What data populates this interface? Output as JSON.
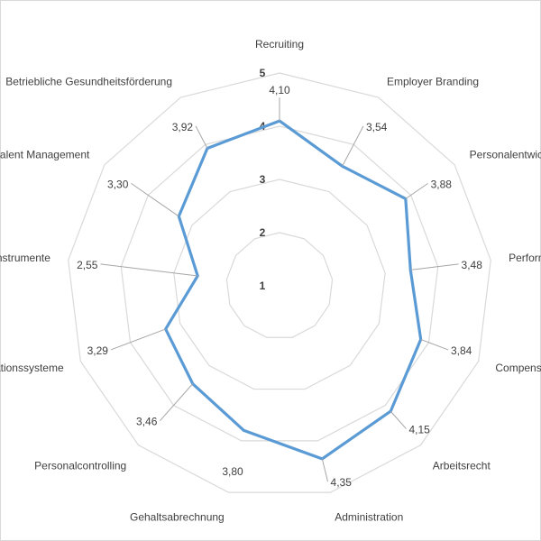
{
  "chart_data": {
    "type": "radar",
    "title": "",
    "categories": [
      "Recruiting",
      "Employer Branding",
      "Personalentwicklung",
      "Performance",
      "Compensation",
      "Arbeitsrecht",
      "Administration",
      "Gehaltsabrechnung",
      "Personalcontrolling",
      "Kommunikationssysteme",
      "Instrumente",
      "Talent Management",
      "Betriebliche Gesundheitsförderung"
    ],
    "category_labels_visible": [
      "Recruiting",
      "Employer Branding",
      "Personalentwick",
      "Perform",
      "Compensat",
      "Arbeitsrecht",
      "Administration",
      "Gehaltsabrechnung",
      "Personalcontrolling",
      "ationssysteme",
      "nstrumente",
      "alent Management",
      "Betriebliche Gesundheitsförderung"
    ],
    "values": [
      4.1,
      3.54,
      3.88,
      3.48,
      3.84,
      4.15,
      4.35,
      3.8,
      3.46,
      3.29,
      2.55,
      3.3,
      3.92
    ],
    "value_labels": [
      "4,10",
      "3,54",
      "3,88",
      "3,48",
      "3,84",
      "4,15",
      "4,35",
      "3,80",
      "3,46",
      "3,29",
      "2,55",
      "3,30",
      "3,92"
    ],
    "rlim": [
      1,
      5
    ],
    "ticks": [
      "1",
      "2",
      "3",
      "4",
      "5"
    ],
    "grid": true,
    "legend": "none",
    "series_color": "#5b9bd5",
    "grid_color": "#d9d9d9",
    "leader_color": "#a6a6a6"
  }
}
